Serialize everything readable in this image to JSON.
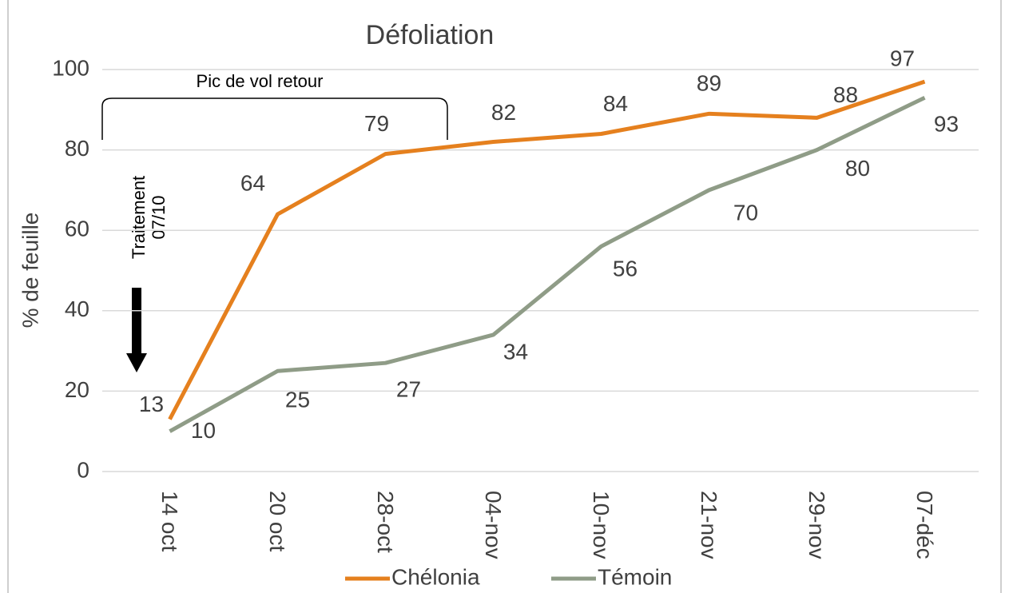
{
  "chart_data": {
    "type": "line",
    "title": "Défoliation",
    "y_label": "% de feuille",
    "categories": [
      "14 oct",
      "20 oct",
      "28-oct",
      "04-nov",
      "10-nov",
      "21-nov",
      "29-nov",
      "07-déc"
    ],
    "series": [
      {
        "name": "Chélonia",
        "color": "#e5801e",
        "values": [
          13,
          64,
          79,
          82,
          84,
          89,
          88,
          97
        ]
      },
      {
        "name": "Témoin",
        "color": "#8f9c87",
        "values": [
          10,
          25,
          27,
          34,
          56,
          70,
          80,
          93
        ]
      }
    ],
    "ylim": [
      0,
      100
    ],
    "yticks": [
      0,
      20,
      40,
      60,
      80,
      100
    ],
    "grid": true,
    "legend": "bottom",
    "annotations": [
      "Pic de vol retour",
      "Traitement",
      "07/10"
    ]
  }
}
